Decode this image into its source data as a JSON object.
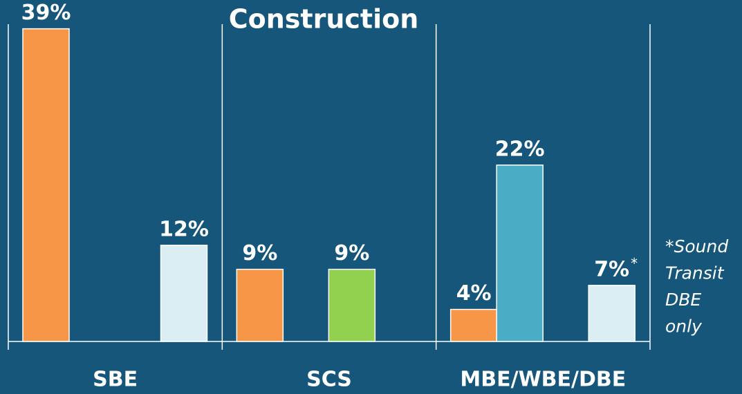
{
  "chart_data": {
    "type": "bar",
    "title": "Construction",
    "categories": [
      "SBE",
      "SCS",
      "MBE/WBE/DBE"
    ],
    "series": [
      {
        "color": "#f79646",
        "values": [
          39,
          9,
          4
        ],
        "value_labels": [
          "39%",
          "9%",
          "4%"
        ]
      },
      {
        "color": "#4bacc6",
        "values": [
          null,
          null,
          22
        ],
        "value_labels": [
          null,
          null,
          "22%"
        ]
      },
      {
        "color": "#92d050",
        "values": [
          null,
          9,
          null
        ],
        "value_labels": [
          null,
          "9%",
          null
        ]
      },
      {
        "color": "#dbeef4",
        "values": [
          12,
          null,
          7
        ],
        "value_labels": [
          "12%",
          null,
          "7%"
        ]
      }
    ],
    "ylim": [
      0,
      40
    ],
    "footnote_mark": "*",
    "annotation": [
      "*Sound",
      "Transit",
      "DBE",
      "only"
    ]
  }
}
